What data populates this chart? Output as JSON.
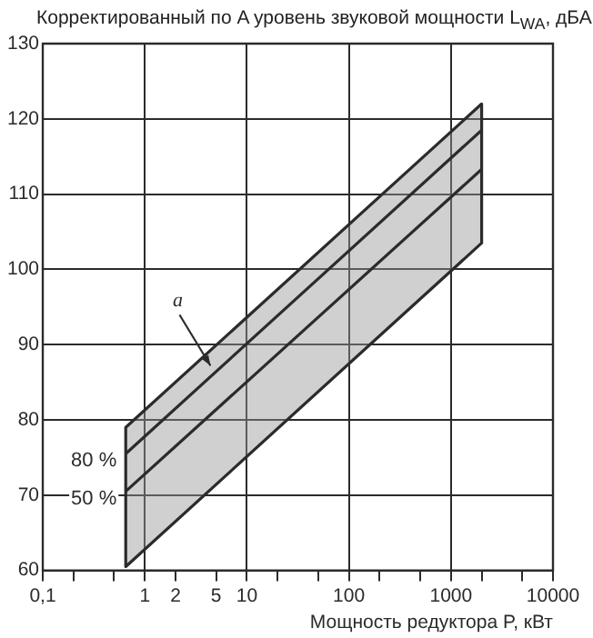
{
  "chart_data": {
    "type": "line",
    "ylabel": "Корректированный по A уровень звуковой мощности L$_{WA}$, дБА",
    "xlabel": "Мощность редуктора P, кВт",
    "log": "x",
    "x": [
      0.65,
      2000
    ],
    "xlim": [
      0.1,
      10000
    ],
    "xticks": [
      {
        "value": 0.1,
        "label": "0,1"
      },
      {
        "value": 0.2,
        "label": null
      },
      {
        "value": 0.5,
        "label": null
      },
      1,
      2,
      5,
      10,
      {
        "value": 20,
        "label": null
      },
      {
        "value": 50,
        "label": null
      },
      100,
      {
        "value": 200,
        "label": null
      },
      {
        "value": 500,
        "label": null
      },
      1000,
      {
        "value": 2000,
        "label": null
      },
      {
        "value": 5000,
        "label": null
      },
      10000
    ],
    "ylim": [
      60,
      130
    ],
    "yticks": [
      60,
      70,
      80,
      90,
      100,
      110,
      120,
      130
    ],
    "grid": true,
    "legend": false,
    "marker": "none",
    "line_style": "solid",
    "series": [
      {
        "name": "80 %",
        "color": "#2b2b2b",
        "values": [
          75.5,
          118.5
        ]
      },
      {
        "name": "50 %",
        "color": "#2b2b2b",
        "values": [
          70.5,
          113.3
        ],
        "lower": [
          60.5,
          103.5
        ],
        "upper": [
          79,
          122
        ]
      }
    ],
    "annotations": [
      {
        "text": "а",
        "x": 4.4,
        "y": 87.2
      }
    ]
  }
}
